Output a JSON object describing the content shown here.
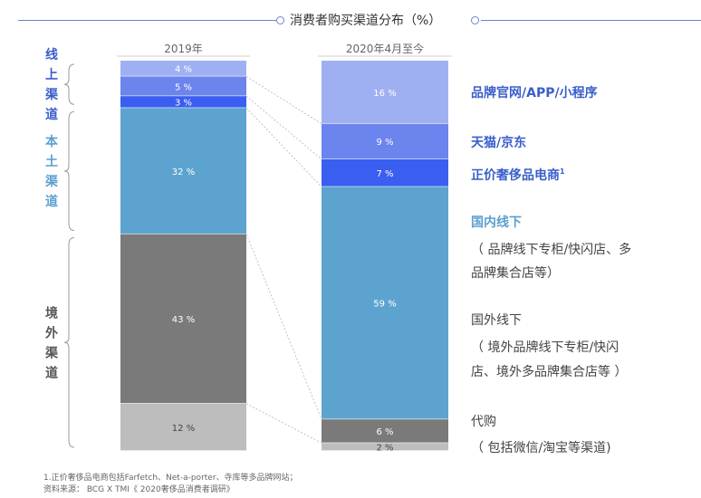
{
  "title": "消费者购买渠道分布（%）",
  "chart_data": {
    "type": "bar",
    "stacked": true,
    "unit": "%",
    "categories": [
      "2019年",
      "2020年4月至今"
    ],
    "series": [
      {
        "name": "品牌官网/APP/小程序",
        "values": [
          4,
          16
        ],
        "color": "#9fb0f2"
      },
      {
        "name": "天猫/京东",
        "values": [
          5,
          9
        ],
        "color": "#6b84ee"
      },
      {
        "name": "正价奢侈品电商",
        "values": [
          3,
          7
        ],
        "color": "#3a5ef0"
      },
      {
        "name": "国内线下",
        "values": [
          32,
          59
        ],
        "color": "#5da3d0"
      },
      {
        "name": "国外线下",
        "values": [
          43,
          6
        ],
        "color": "#7a7a7a"
      },
      {
        "name": "代购",
        "values": [
          12,
          2
        ],
        "color": "#bdbdbd"
      }
    ],
    "value_labels": [
      [
        "4 %",
        "5 %",
        "3 %",
        "32 %",
        "43 %",
        "12 %"
      ],
      [
        "16 %",
        "9 %",
        "7 %",
        "59 %",
        "6 %",
        "2 %"
      ]
    ],
    "groups": [
      {
        "label": "线上渠道",
        "color": "#3a5ecb"
      },
      {
        "label": "本土渠道",
        "color": "#5b9fd0"
      },
      {
        "label": "境外渠道",
        "color": "#555555"
      }
    ],
    "legend": [
      {
        "title": "品牌官网/APP/小程序",
        "title_suffix": "",
        "sub": [],
        "color": "#3a5ecb"
      },
      {
        "title": "天猫/京东",
        "title_suffix": "",
        "sub": [],
        "color": "#3a5ecb"
      },
      {
        "title": "正价奢侈品电商",
        "title_suffix": "1",
        "sub": [],
        "color": "#3a5ecb"
      },
      {
        "title": "国内线下",
        "title_suffix": "",
        "sub": [
          "（ 品牌线下专柜/快闪店、多",
          "品牌集合店等）"
        ],
        "color": "#5b9fd0"
      },
      {
        "title": "国外线下",
        "title_suffix": "",
        "sub": [
          "（ 境外品牌线下专柜/快闪",
          "店、境外多品牌集合店等 ）"
        ],
        "color": "#555555"
      },
      {
        "title": "代购",
        "title_suffix": "",
        "sub": [
          "（ 包括微信/淘宝等渠道)"
        ],
        "color": "#555555"
      }
    ]
  },
  "footnotes": [
    "1.正价奢侈品电商包括Farfetch、Net-a-porter、寺库等多品牌网站；",
    "资料来源： BCG X TMI《 2020奢侈品消费者调研》"
  ]
}
